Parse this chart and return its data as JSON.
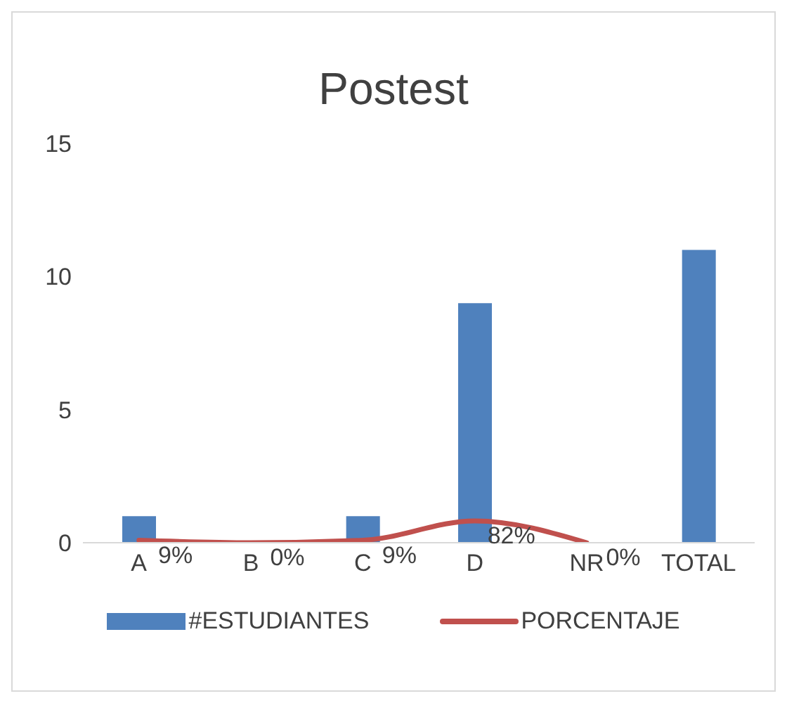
{
  "chart_data": {
    "type": "bar",
    "title": "Postest",
    "categories": [
      "A",
      "B",
      "C",
      "D",
      "NR",
      "TOTAL"
    ],
    "series": [
      {
        "name": "#ESTUDIANTES",
        "color": "#4f81bd",
        "values": [
          1,
          0,
          1,
          9,
          0,
          11
        ]
      },
      {
        "name": "PORCENTAJE",
        "type": "line",
        "color": "#c0504d",
        "values": [
          0.09,
          0,
          0.09,
          0.82,
          0,
          null
        ],
        "value_labels": [
          "9%",
          "0%",
          "9%",
          "82%",
          "0%",
          null
        ]
      }
    ],
    "ylim": [
      0,
      15
    ],
    "yticks": [
      0,
      5,
      10,
      15
    ],
    "grid": false,
    "legend": "bottom",
    "marker": "none",
    "line_style": "solid"
  }
}
